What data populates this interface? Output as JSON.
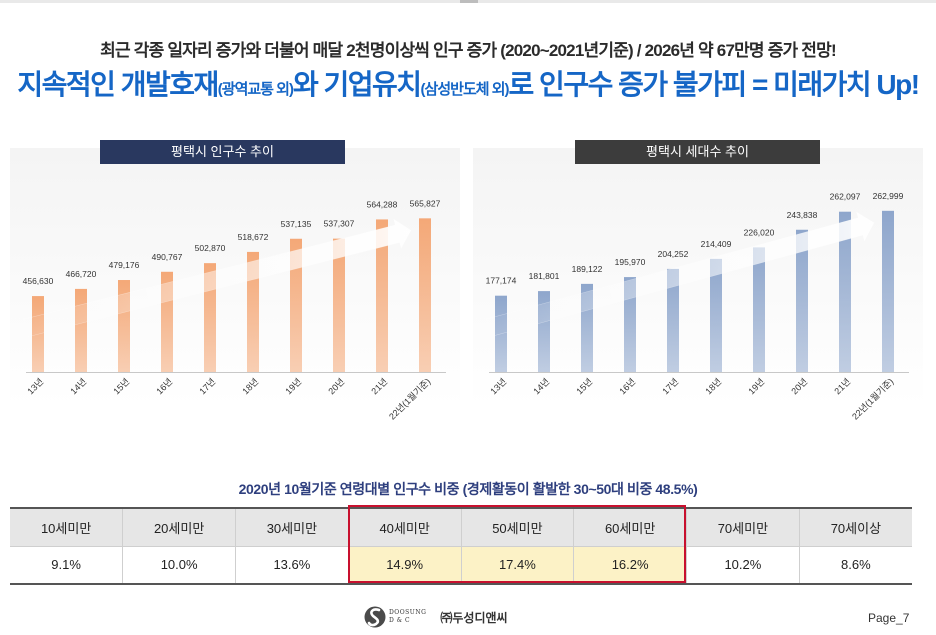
{
  "header": {
    "line1": "최근 각종 일자리 증가와 더불어 매달 2천명이상씩 인구 증가 (2020~2021년기준) / 2026년 약 67만명 증가 전망!",
    "line2_a": "지속적인 개발호재",
    "line2_a_small": "(광역교통 외)",
    "line2_b": "와 기업유치",
    "line2_b_small": "(삼성반도체 외)",
    "line2_c": "로 인구수 증가 불가피 = 미래가치 Up!"
  },
  "chart_data": [
    {
      "type": "bar",
      "title": "평택시 인구수 추이",
      "categories": [
        "13년",
        "14년",
        "15년",
        "16년",
        "17년",
        "18년",
        "19년",
        "20년",
        "21년",
        "22년(1월기준)"
      ],
      "values": [
        456630,
        466720,
        479176,
        490767,
        502870,
        518672,
        537135,
        537307,
        564288,
        565827
      ],
      "value_labels": [
        "456,630",
        "466,720",
        "479,176",
        "490,767",
        "502,870",
        "518,672",
        "537,135",
        "537,307",
        "564,288",
        "565,827"
      ],
      "ylim": [
        350000,
        600000
      ],
      "grid": false,
      "color": "#f4a877",
      "trend_arrow": true
    },
    {
      "type": "bar",
      "title": "평택시 세대수 추이",
      "categories": [
        "13년",
        "14년",
        "15년",
        "16년",
        "17년",
        "18년",
        "19년",
        "20년",
        "21년",
        "22년(1월기준)"
      ],
      "values": [
        177174,
        181801,
        189122,
        195970,
        204252,
        214409,
        226020,
        243838,
        262097,
        262999
      ],
      "value_labels": [
        "177,174",
        "181,801",
        "189,122",
        "195,970",
        "204,252",
        "214,409",
        "226,020",
        "243,838",
        "262,097",
        "262,999"
      ],
      "ylim": [
        100000,
        280000
      ],
      "grid": false,
      "color": "#8ea6cc",
      "trend_arrow": true
    }
  ],
  "age_table": {
    "caption": "2020년 10월기준 연령대별 인구수 비중 (경제활동이 활발한 30~50대 비중 48.5%)",
    "headers": [
      "10세미만",
      "20세미만",
      "30세미만",
      "40세미만",
      "50세미만",
      "60세미만",
      "70세미만",
      "70세이상"
    ],
    "values": [
      "9.1%",
      "10.0%",
      "13.6%",
      "14.9%",
      "17.4%",
      "16.2%",
      "10.2%",
      "8.6%"
    ],
    "highlight_color": "#c8102e"
  },
  "footer": {
    "brand_en_1": "DOOSUNG",
    "brand_en_2": "D & C",
    "brand_ko": "㈜두성디앤씨",
    "page": "Page_7"
  }
}
